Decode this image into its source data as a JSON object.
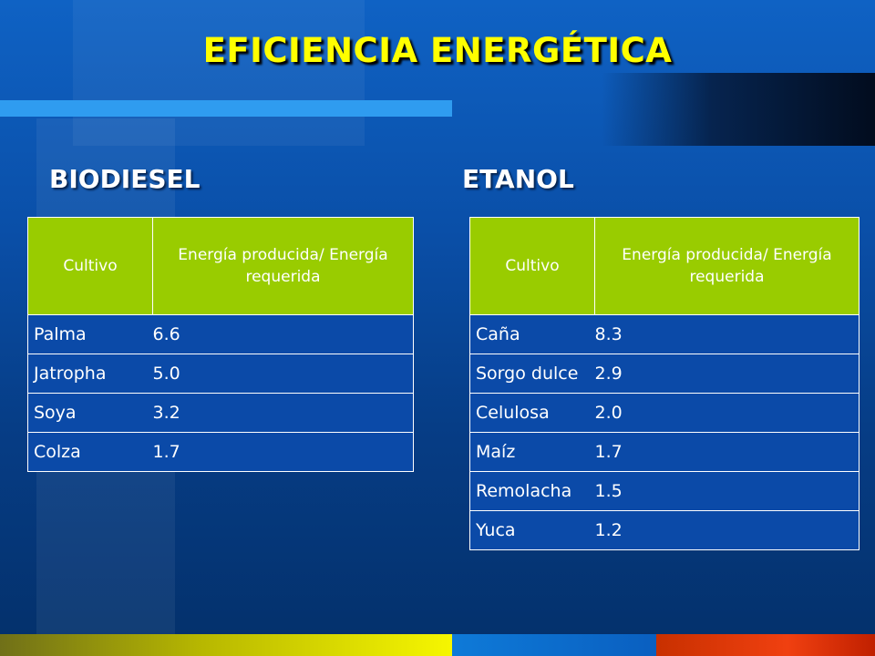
{
  "title": "EFICIENCIA ENERGÉTICA",
  "biodiesel": {
    "heading": "BIODIESEL",
    "columns": [
      "Cultivo",
      "Energía producida/ Energía requerida"
    ],
    "rows": [
      {
        "crop": "Palma",
        "value": "6.6"
      },
      {
        "crop": "Jatropha",
        "value": "5.0"
      },
      {
        "crop": "Soya",
        "value": "3.2"
      },
      {
        "crop": "Colza",
        "value": "1.7"
      }
    ]
  },
  "etanol": {
    "heading": "ETANOL",
    "columns": [
      "Cultivo",
      "Energía producida/ Energía requerida"
    ],
    "rows": [
      {
        "crop": "Caña",
        "value": "8.3"
      },
      {
        "crop": "Sorgo dulce",
        "value": "2.9"
      },
      {
        "crop": "Celulosa",
        "value": "2.0"
      },
      {
        "crop": "Maíz",
        "value": "1.7"
      },
      {
        "crop": "Remolacha",
        "value": "1.5"
      },
      {
        "crop": "Yuca",
        "value": "1.2"
      }
    ]
  },
  "colors": {
    "title": "#ffff00",
    "header_fill": "#99cc00",
    "background": "#0a4fa8"
  }
}
